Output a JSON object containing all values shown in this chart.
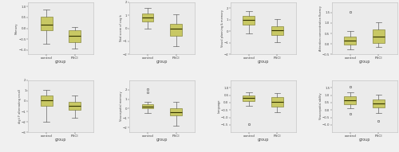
{
  "figure_bg": "#f0f0f0",
  "axes_bg": "#ebebeb",
  "box_facecolor": "#c8c864",
  "box_edgecolor": "#888840",
  "median_color": "#333300",
  "whisker_color": "#666666",
  "cap_color": "#666666",
  "flier_marker_color": "#555555",
  "xlabel": "group",
  "xtick_labels": [
    "control",
    "PSCI"
  ],
  "plots": [
    {
      "ylabel": "Memory",
      "control": {
        "q1": -0.1,
        "median": 0.15,
        "q3": 0.55,
        "whislo": -0.7,
        "whishi": 0.85,
        "fliers": []
      },
      "psci": {
        "q1": -0.65,
        "median": -0.35,
        "q3": -0.1,
        "whislo": -0.95,
        "whishi": 0.05,
        "fliers": []
      },
      "ylim": [
        -1.2,
        1.2
      ],
      "yticks": [
        -1.0,
        -0.5,
        0.0,
        0.5,
        1.0
      ]
    },
    {
      "ylabel": "Total_score_of_cog_b",
      "control": {
        "q1": 0.55,
        "median": 0.85,
        "q3": 1.15,
        "whislo": 0.0,
        "whishi": 1.55,
        "fliers": []
      },
      "psci": {
        "q1": -0.55,
        "median": -0.05,
        "q3": 0.35,
        "whislo": -1.4,
        "whishi": 1.05,
        "fliers": []
      },
      "ylim": [
        -2.0,
        2.0
      ],
      "yticks": [
        -2.0,
        -1.0,
        0.0,
        1.0,
        2.0
      ]
    },
    {
      "ylabel": "Visual_planning_&_memory",
      "control": {
        "q1": 0.55,
        "median": 0.95,
        "q3": 1.35,
        "whislo": -0.2,
        "whishi": 1.75,
        "fliers": []
      },
      "psci": {
        "q1": -0.35,
        "median": 0.05,
        "q3": 0.45,
        "whislo": -0.95,
        "whishi": 1.05,
        "fliers": []
      },
      "ylim": [
        -2.0,
        2.5
      ],
      "yticks": [
        -2.0,
        -1.0,
        0.0,
        1.0,
        2.0
      ]
    },
    {
      "ylabel": "Attention_concentration_fluency",
      "control": {
        "q1": -0.05,
        "median": 0.15,
        "q3": 0.35,
        "whislo": -0.25,
        "whishi": 0.6,
        "fliers": [
          1.55
        ]
      },
      "psci": {
        "q1": 0.05,
        "median": 0.35,
        "q3": 0.7,
        "whislo": -0.15,
        "whishi": 1.05,
        "fliers": []
      },
      "ylim": [
        -0.5,
        2.0
      ],
      "yticks": [
        -0.5,
        0.0,
        0.5,
        1.0,
        1.5
      ]
    },
    {
      "ylabel": "digit_F_alternating_recall",
      "control": {
        "q1": -0.45,
        "median": 0.05,
        "q3": 0.5,
        "whislo": -2.0,
        "whishi": 1.1,
        "fliers": []
      },
      "psci": {
        "q1": -0.85,
        "median": -0.45,
        "q3": -0.05,
        "whislo": -1.6,
        "whishi": 0.55,
        "fliers": []
      },
      "ylim": [
        -3.0,
        2.0
      ],
      "yticks": [
        -3.0,
        -2.0,
        -1.0,
        0.0,
        1.0,
        2.0
      ]
    },
    {
      "ylabel": "Visuospatial_memory",
      "control": {
        "q1": 0.05,
        "median": 0.25,
        "q3": 0.45,
        "whislo": -0.45,
        "whishi": 0.75,
        "fliers": [
          2.05,
          1.75
        ]
      },
      "psci": {
        "q1": -0.75,
        "median": -0.35,
        "q3": 0.05,
        "whislo": -1.85,
        "whishi": 0.75,
        "fliers": []
      },
      "ylim": [
        -2.5,
        3.0
      ],
      "yticks": [
        -2.0,
        -1.0,
        0.0,
        1.0,
        2.0
      ]
    },
    {
      "ylabel": "Language",
      "control": {
        "q1": 0.1,
        "median": 0.3,
        "q3": 0.5,
        "whislo": -0.2,
        "whishi": 0.7,
        "fliers": [
          -1.45
        ]
      },
      "psci": {
        "q1": -0.25,
        "median": 0.05,
        "q3": 0.35,
        "whislo": -0.65,
        "whishi": 0.65,
        "fliers": []
      },
      "ylim": [
        -2.0,
        1.5
      ],
      "yticks": [
        -1.5,
        -1.0,
        -0.5,
        0.0,
        0.5,
        1.0
      ]
    },
    {
      "ylabel": "Visuospatial_ability",
      "control": {
        "q1": 0.4,
        "median": 0.65,
        "q3": 0.9,
        "whislo": 0.1,
        "whishi": 1.2,
        "fliers": [
          1.55,
          -0.25
        ]
      },
      "psci": {
        "q1": 0.15,
        "median": 0.45,
        "q3": 0.7,
        "whislo": -0.2,
        "whishi": 1.05,
        "fliers": [
          -0.75
        ]
      },
      "ylim": [
        -1.5,
        2.0
      ],
      "yticks": [
        -1.0,
        -0.5,
        0.0,
        0.5,
        1.0,
        1.5
      ]
    }
  ]
}
